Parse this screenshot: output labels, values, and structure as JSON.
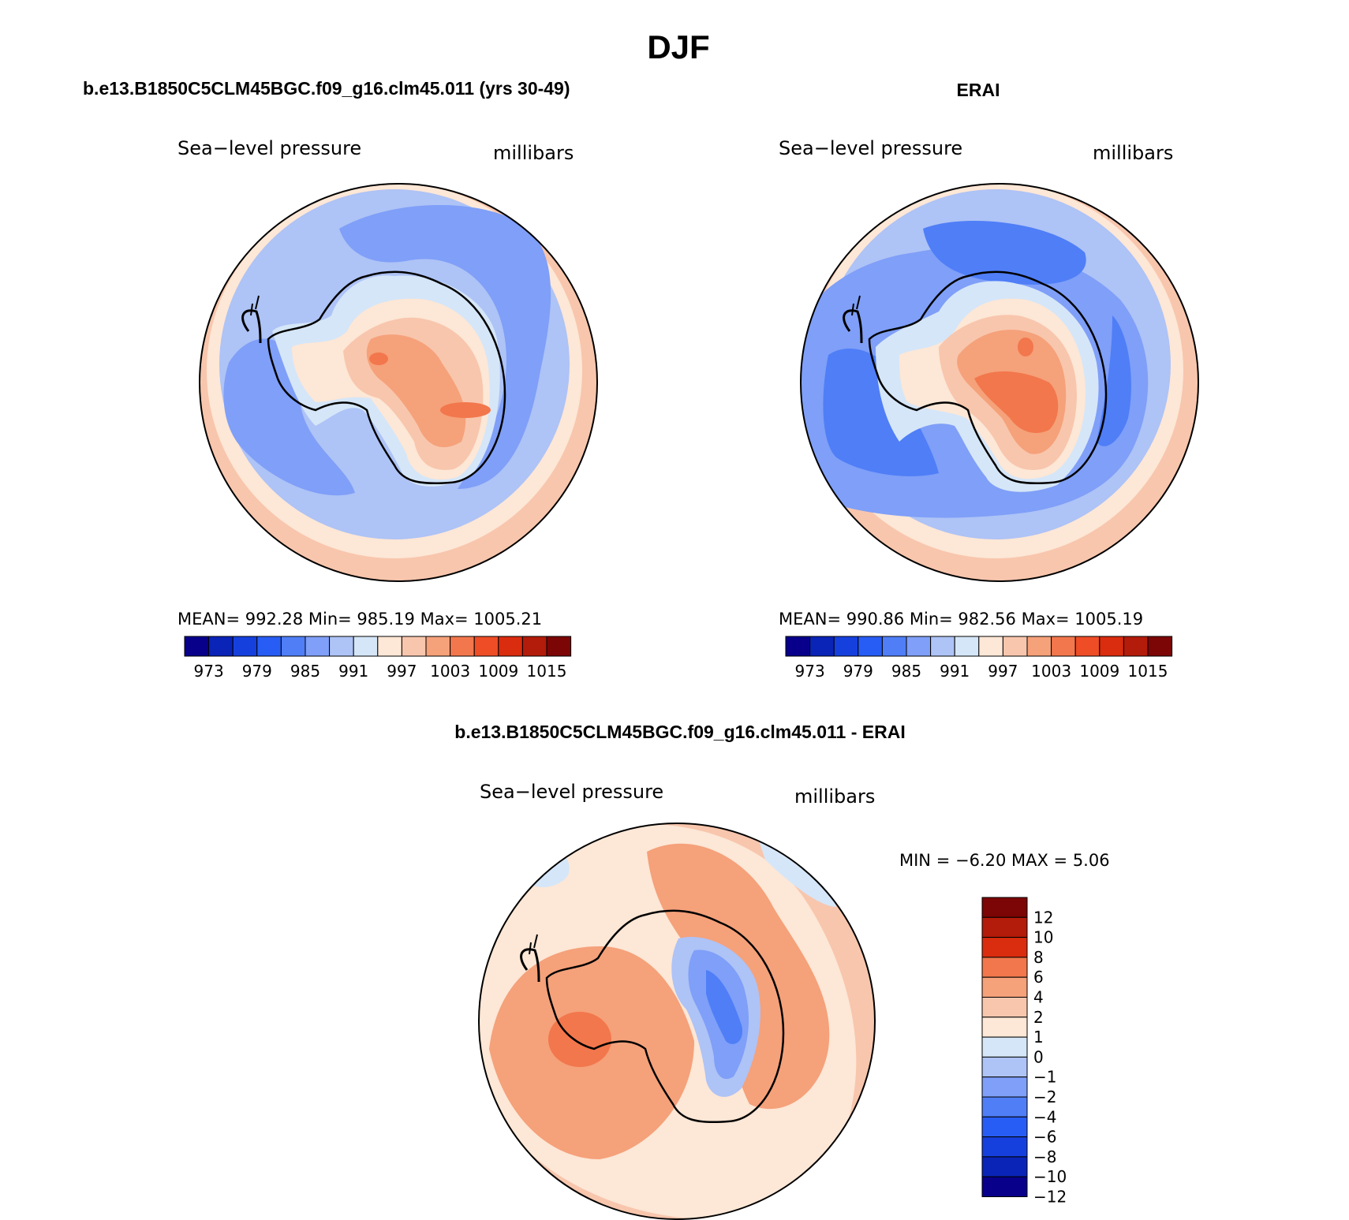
{
  "main_title": "DJF",
  "panels": [
    {
      "title": "b.e13.B1850C5CLM45BGC.f09_g16.clm45.011 (yrs 30-49)",
      "left_label": "Sea−level pressure",
      "right_label": "millibars",
      "stats": "MEAN=  992.28   Min=  985.19   Max=  1005.21",
      "colorbar": {
        "colors": [
          "#08008a",
          "#0a24b8",
          "#1640de",
          "#275df5",
          "#4f7ef7",
          "#7f9ff8",
          "#aec3f6",
          "#d5e6f8",
          "#fde7d6",
          "#f8c6ad",
          "#f5a17a",
          "#f2774c",
          "#ee4d26",
          "#da2c0e",
          "#b31b0a",
          "#7c0505"
        ],
        "tick_labels": [
          "973",
          "979",
          "985",
          "991",
          "997",
          "1003",
          "1009",
          "1015"
        ]
      }
    },
    {
      "title": "ERAI",
      "left_label": "Sea−level pressure",
      "right_label": "millibars",
      "stats": "MEAN=  990.86   Min=  982.56   Max=  1005.19",
      "colorbar": {
        "colors": [
          "#08008a",
          "#0a24b8",
          "#1640de",
          "#275df5",
          "#4f7ef7",
          "#7f9ff8",
          "#aec3f6",
          "#d5e6f8",
          "#fde7d6",
          "#f8c6ad",
          "#f5a17a",
          "#f2774c",
          "#ee4d26",
          "#da2c0e",
          "#b31b0a",
          "#7c0505"
        ],
        "tick_labels": [
          "973",
          "979",
          "985",
          "991",
          "997",
          "1003",
          "1009",
          "1015"
        ]
      }
    },
    {
      "title": "b.e13.B1850C5CLM45BGC.f09_g16.clm45.011 - ERAI",
      "left_label": "Sea−level pressure",
      "right_label": "millibars",
      "stats": "MIN =    −6.20  MAX =     5.06",
      "colorbar": {
        "colors": [
          "#7c0505",
          "#b31b0a",
          "#da2c0e",
          "#f2774c",
          "#f5a17a",
          "#f8c6ad",
          "#fde7d6",
          "#d5e6f8",
          "#aec3f6",
          "#7f9ff8",
          "#4f7ef7",
          "#275df5",
          "#1640de",
          "#0a24b8",
          "#08008a"
        ],
        "tick_labels": [
          "12",
          "10",
          "8",
          "6",
          "4",
          "2",
          "1",
          "0",
          "−1",
          "−2",
          "−4",
          "−6",
          "−8",
          "−10",
          "−12"
        ]
      }
    }
  ]
}
